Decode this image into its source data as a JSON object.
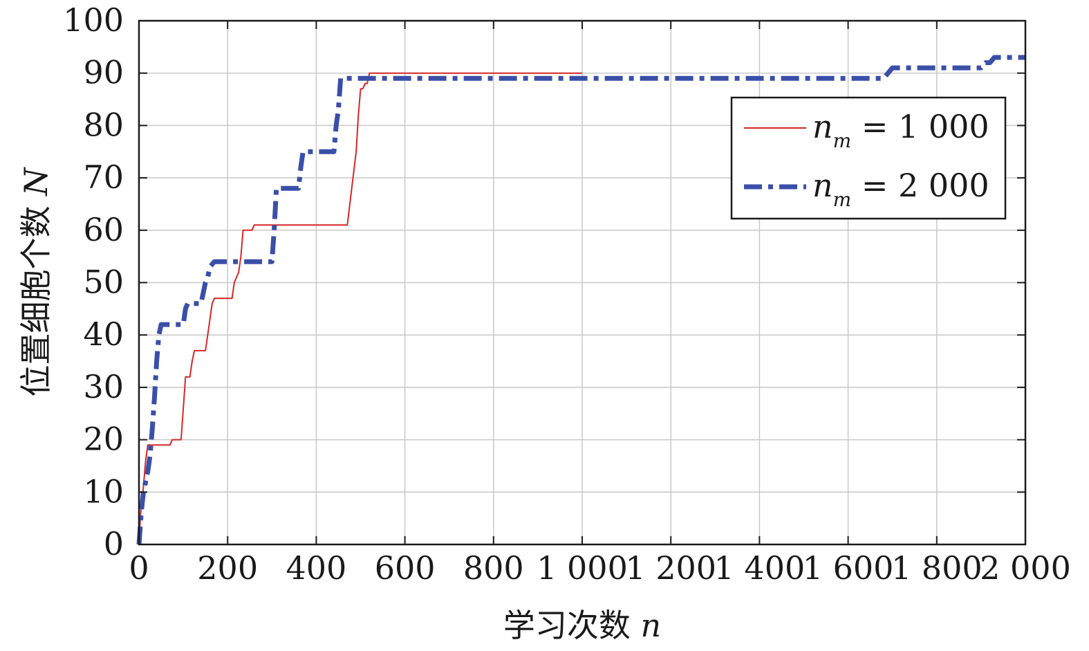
{
  "chart_data": {
    "type": "line",
    "title": "",
    "xlabel": "学习次数",
    "xlabel_var": "n",
    "ylabel": "位置细胞个数",
    "ylabel_var": "N",
    "xlim": [
      0,
      2000
    ],
    "ylim": [
      0,
      100
    ],
    "xticks": [
      0,
      200,
      400,
      600,
      800,
      1000,
      1200,
      1400,
      1600,
      1800,
      2000
    ],
    "xtick_labels": [
      "0",
      "200",
      "400",
      "600",
      "800",
      "1 000",
      "1 200",
      "1 400",
      "1 600",
      "1 800",
      "2 000"
    ],
    "yticks": [
      0,
      10,
      20,
      30,
      40,
      50,
      60,
      70,
      80,
      90,
      100
    ],
    "ytick_labels": [
      "0",
      "10",
      "20",
      "30",
      "40",
      "50",
      "60",
      "70",
      "80",
      "90",
      "100"
    ],
    "grid": true,
    "legend_position": "top-right",
    "series": [
      {
        "name": "n_m = 1 000",
        "legend_main": "n",
        "legend_sub": "m",
        "legend_rest": " = 1 000",
        "color": "#d62728",
        "style": "solid",
        "x": [
          0,
          3,
          6,
          9,
          12,
          15,
          20,
          30,
          70,
          75,
          95,
          100,
          105,
          115,
          120,
          125,
          130,
          150,
          155,
          160,
          165,
          170,
          180,
          200,
          210,
          215,
          220,
          225,
          230,
          235,
          240,
          255,
          260,
          300,
          470,
          490,
          495,
          500,
          505,
          510,
          515,
          520,
          1000
        ],
        "y": [
          0,
          5,
          8,
          10,
          13,
          16,
          19,
          19,
          19,
          20,
          20,
          26,
          32,
          32,
          35,
          37,
          37,
          37,
          40,
          43,
          46,
          47,
          47,
          47,
          47,
          50,
          51,
          52,
          55,
          60,
          60,
          60,
          61,
          61,
          61,
          75,
          82,
          87,
          87,
          88,
          88,
          90,
          90
        ]
      },
      {
        "name": "n_m = 2 000",
        "legend_main": "n",
        "legend_sub": "m",
        "legend_rest": " = 2 000",
        "color": "#3a4fa8",
        "style": "dashdot",
        "x": [
          0,
          5,
          10,
          15,
          20,
          25,
          30,
          35,
          40,
          45,
          50,
          60,
          100,
          105,
          110,
          140,
          145,
          150,
          155,
          160,
          170,
          300,
          305,
          310,
          315,
          320,
          360,
          365,
          370,
          375,
          440,
          445,
          450,
          455,
          460,
          465,
          470,
          1680,
          1690,
          1700,
          1710,
          1780,
          1790,
          1800,
          1900,
          1910,
          1920,
          1930,
          1940,
          1950,
          2000
        ],
        "y": [
          0,
          6,
          10,
          12,
          14,
          17,
          22,
          28,
          35,
          40,
          42,
          42,
          42,
          45,
          46,
          46,
          48,
          50,
          51,
          53,
          54,
          54,
          60,
          68,
          68,
          68,
          68,
          72,
          75,
          75,
          75,
          80,
          83,
          89,
          89,
          89,
          89,
          89,
          90,
          91,
          91,
          91,
          91,
          91,
          91,
          92,
          92,
          93,
          93,
          93,
          93
        ]
      }
    ]
  }
}
